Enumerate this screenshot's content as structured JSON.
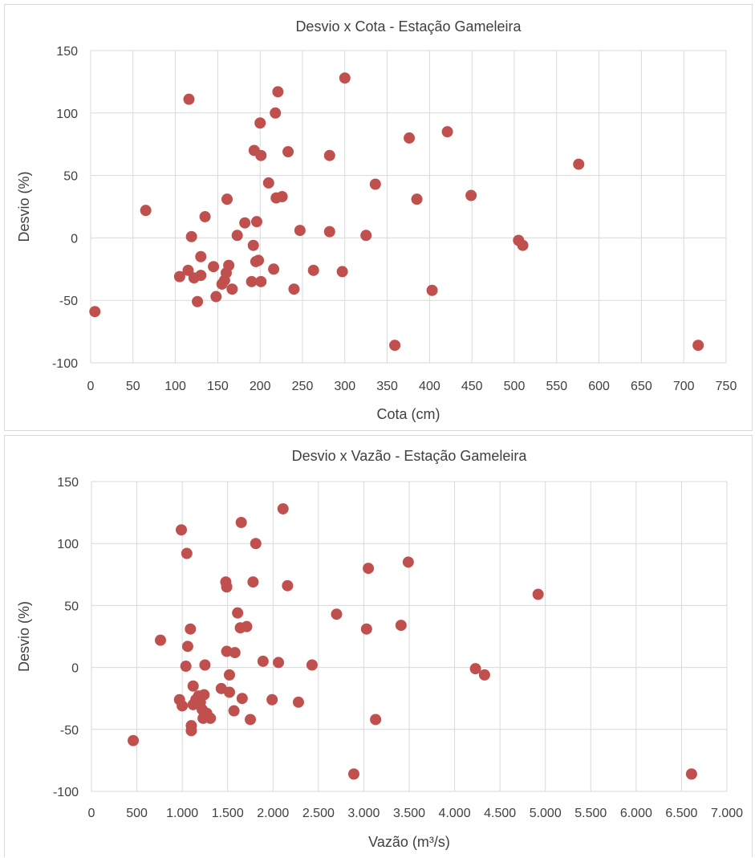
{
  "colors": {
    "marker": "#c0504d",
    "grid": "#d9d9d9",
    "text": "#404040"
  },
  "chart_data": [
    {
      "type": "scatter",
      "title": "Desvio x Cota - Estação Gameleira",
      "xlabel": "Cota (cm)",
      "ylabel": "Desvio (%)",
      "xlim": [
        0,
        750
      ],
      "ylim": [
        -100,
        150
      ],
      "xticks": [
        "0",
        "50",
        "100",
        "150",
        "200",
        "250",
        "300",
        "350",
        "400",
        "450",
        "500",
        "550",
        "600",
        "650",
        "700",
        "750"
      ],
      "yticks": [
        "-100",
        "-50",
        "0",
        "50",
        "100",
        "150"
      ],
      "grid": "vertical and horizontal",
      "legend": "none",
      "points": [
        [
          5,
          -59
        ],
        [
          65,
          22
        ],
        [
          105,
          -31
        ],
        [
          115,
          -26
        ],
        [
          116,
          111
        ],
        [
          119,
          1
        ],
        [
          122,
          -32
        ],
        [
          126,
          -51
        ],
        [
          130,
          -15
        ],
        [
          130,
          -30
        ],
        [
          135,
          17
        ],
        [
          145,
          -23
        ],
        [
          148,
          -47
        ],
        [
          155,
          -37
        ],
        [
          158,
          -34
        ],
        [
          160,
          -28
        ],
        [
          161,
          31
        ],
        [
          163,
          -22
        ],
        [
          167,
          -41
        ],
        [
          173,
          2
        ],
        [
          182,
          12
        ],
        [
          190,
          -35
        ],
        [
          192,
          -6
        ],
        [
          193,
          70
        ],
        [
          195,
          -19
        ],
        [
          196,
          13
        ],
        [
          198,
          -18
        ],
        [
          200,
          92
        ],
        [
          201,
          -35
        ],
        [
          201,
          66
        ],
        [
          210,
          44
        ],
        [
          216,
          -25
        ],
        [
          218,
          100
        ],
        [
          219,
          32
        ],
        [
          221,
          117
        ],
        [
          226,
          33
        ],
        [
          233,
          69
        ],
        [
          240,
          -41
        ],
        [
          247,
          6
        ],
        [
          263,
          -26
        ],
        [
          282,
          66
        ],
        [
          282,
          5
        ],
        [
          297,
          -27
        ],
        [
          300,
          128
        ],
        [
          325,
          2
        ],
        [
          336,
          43
        ],
        [
          359,
          -86
        ],
        [
          376,
          80
        ],
        [
          385,
          31
        ],
        [
          403,
          -42
        ],
        [
          421,
          85
        ],
        [
          449,
          34
        ],
        [
          505,
          -2
        ],
        [
          510,
          -6
        ],
        [
          576,
          59
        ],
        [
          717,
          -86
        ]
      ]
    },
    {
      "type": "scatter",
      "title": "Desvio x Vazão - Estação Gameleira",
      "xlabel": "Vazão (m³/s)",
      "ylabel": "Desvio (%)",
      "xlim": [
        0,
        7000
      ],
      "ylim": [
        -100,
        150
      ],
      "xticks": [
        "0",
        "500",
        "1.000",
        "1.500",
        "2.000",
        "2.500",
        "3.000",
        "3.500",
        "4.000",
        "4.500",
        "5.000",
        "5.500",
        "6.000",
        "6.500",
        "7.000"
      ],
      "yticks": [
        "-100",
        "-50",
        "0",
        "50",
        "100",
        "150"
      ],
      "grid": "vertical and horizontal",
      "legend": "none",
      "points": [
        [
          460,
          -59
        ],
        [
          760,
          22
        ],
        [
          970,
          -26
        ],
        [
          990,
          111
        ],
        [
          1000,
          -31
        ],
        [
          1040,
          1
        ],
        [
          1050,
          92
        ],
        [
          1060,
          17
        ],
        [
          1090,
          31
        ],
        [
          1100,
          -47
        ],
        [
          1100,
          -51
        ],
        [
          1120,
          -15
        ],
        [
          1120,
          -30
        ],
        [
          1150,
          -26
        ],
        [
          1180,
          -23
        ],
        [
          1200,
          -28
        ],
        [
          1220,
          -34
        ],
        [
          1230,
          -41
        ],
        [
          1240,
          -22
        ],
        [
          1250,
          2
        ],
        [
          1270,
          -37
        ],
        [
          1310,
          -41
        ],
        [
          1430,
          -17
        ],
        [
          1480,
          69
        ],
        [
          1490,
          13
        ],
        [
          1490,
          65
        ],
        [
          1520,
          -20
        ],
        [
          1520,
          -6
        ],
        [
          1570,
          -35
        ],
        [
          1580,
          12
        ],
        [
          1610,
          44
        ],
        [
          1640,
          32
        ],
        [
          1650,
          117
        ],
        [
          1660,
          -25
        ],
        [
          1710,
          33
        ],
        [
          1750,
          -42
        ],
        [
          1780,
          69
        ],
        [
          1810,
          100
        ],
        [
          1890,
          5
        ],
        [
          1990,
          -26
        ],
        [
          2060,
          4
        ],
        [
          2110,
          128
        ],
        [
          2160,
          66
        ],
        [
          2280,
          -28
        ],
        [
          2430,
          2
        ],
        [
          2700,
          43
        ],
        [
          2890,
          -86
        ],
        [
          3030,
          31
        ],
        [
          3050,
          80
        ],
        [
          3130,
          -42
        ],
        [
          3410,
          34
        ],
        [
          3490,
          85
        ],
        [
          4230,
          -1
        ],
        [
          4330,
          -6
        ],
        [
          4920,
          59
        ],
        [
          6610,
          -86
        ]
      ]
    }
  ]
}
